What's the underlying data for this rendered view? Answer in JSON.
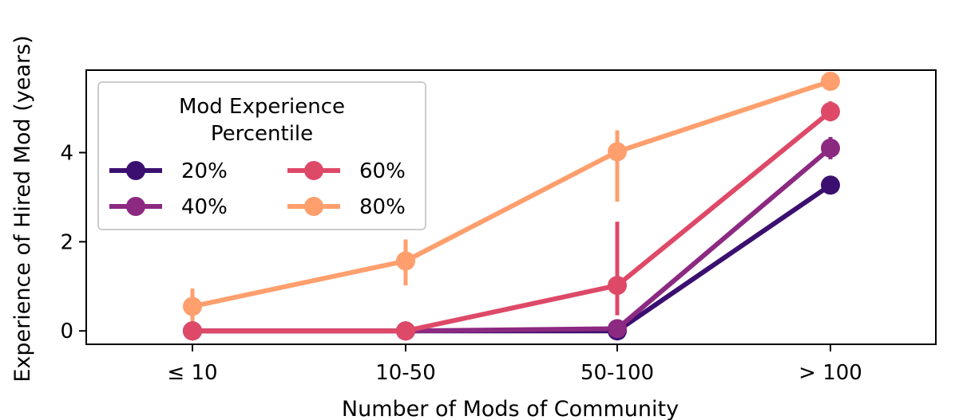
{
  "chart_data": {
    "type": "line",
    "categories": [
      "≤ 10",
      "10-50",
      "50-100",
      "> 100"
    ],
    "xlabel": "Number of Mods of Community",
    "ylabel": "Experience of Hired Mod (years)",
    "ylim": [
      -0.3,
      5.85
    ],
    "yticks": [
      0,
      2,
      4
    ],
    "grid": false,
    "legend": {
      "title_line1": "Mod Experience",
      "title_line2": "Percentile",
      "placement": "upper-left",
      "columns": 2
    },
    "series": [
      {
        "name": "20%",
        "color": "#3b0f70",
        "values": [
          0,
          0,
          0.0,
          3.27
        ],
        "errors": [
          [
            0,
            0
          ],
          [
            0,
            0
          ],
          [
            0,
            0
          ],
          [
            0,
            0
          ]
        ]
      },
      {
        "name": "40%",
        "color": "#8c2981",
        "values": [
          0,
          0,
          0.05,
          4.1
        ],
        "errors": [
          [
            0,
            0
          ],
          [
            0,
            0
          ],
          [
            0,
            0
          ],
          [
            3.85,
            4.35
          ]
        ]
      },
      {
        "name": "60%",
        "color": "#de4968",
        "values": [
          0,
          0,
          1.02,
          4.92
        ],
        "errors": [
          [
            0,
            0
          ],
          [
            0,
            0
          ],
          [
            0.35,
            2.45
          ],
          [
            4.7,
            5.15
          ]
        ]
      },
      {
        "name": "80%",
        "color": "#fe9f6d",
        "values": [
          0.55,
          1.57,
          4.02,
          5.6
        ],
        "errors": [
          [
            0.12,
            0.95
          ],
          [
            1.02,
            2.05
          ],
          [
            2.9,
            4.5
          ],
          [
            5.55,
            5.65
          ]
        ]
      }
    ]
  }
}
